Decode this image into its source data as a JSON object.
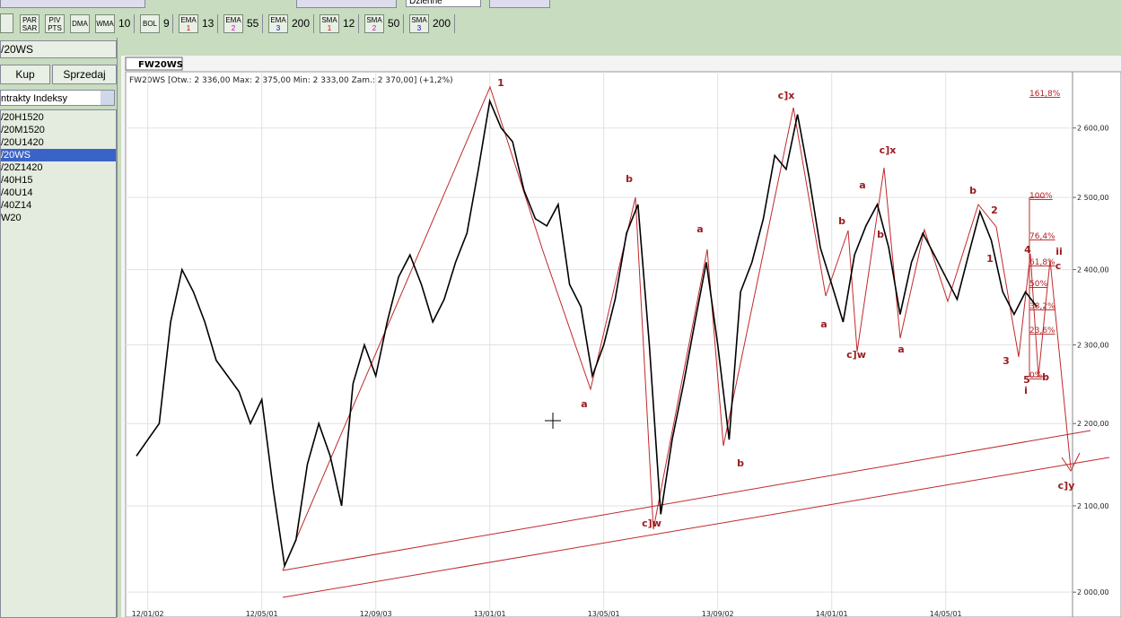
{
  "toolbar": {
    "timeframe": "Dzienne",
    "buttons": [
      {
        "name": "PAR",
        "name2": "SAR"
      },
      {
        "name": "PIV",
        "name2": "PTS"
      },
      {
        "name": "DMA"
      },
      {
        "name": "WMA",
        "param": "10"
      },
      {
        "name": "BOL",
        "param": "9"
      },
      {
        "name": "EMA",
        "sub": "1",
        "param": "13"
      },
      {
        "name": "EMA",
        "sub": "2",
        "param": "55"
      },
      {
        "name": "EMA",
        "sub": "3",
        "param": "200"
      },
      {
        "name": "SMA",
        "sub": "1",
        "param": "12"
      },
      {
        "name": "SMA",
        "sub": "2",
        "param": "50"
      },
      {
        "name": "SMA",
        "sub": "3",
        "param": "200"
      }
    ]
  },
  "sidebar": {
    "title": "/20WS",
    "buy": "Kup",
    "sell": "Sprzedaj",
    "dropdown": "ntrakty Indeksy",
    "items": [
      "/20H1520",
      "/20M1520",
      "/20U1420",
      "/20WS",
      "/20Z1420",
      "/40H15",
      "/40U14",
      "/40Z14",
      "W20"
    ],
    "selected": 3
  },
  "chart_data": {
    "type": "line",
    "tab": "FW20WS",
    "title": "FW20WS [Otw.: 2 336,00   Max: 2 375,00   Min: 2 333,00   Zam.: 2 370,00] (+1,2%)",
    "categories": [
      null,
      "12/01/02",
      null,
      null,
      null,
      null,
      null,
      null,
      null,
      null,
      null,
      "12/05/01",
      null,
      null,
      null,
      null,
      null,
      null,
      null,
      null,
      null,
      "12/09/03",
      null,
      null,
      null,
      null,
      null,
      null,
      null,
      null,
      null,
      "13/01/01",
      null,
      null,
      null,
      null,
      null,
      null,
      null,
      null,
      null,
      "13/05/01",
      null,
      null,
      null,
      null,
      null,
      null,
      null,
      null,
      null,
      "13/09/02",
      null,
      null,
      null,
      null,
      null,
      null,
      null,
      null,
      null,
      "14/01/01",
      null,
      null,
      null,
      null,
      null,
      null,
      null,
      null,
      null,
      "14/05/01",
      null,
      null,
      null,
      null,
      null,
      null,
      null,
      null
    ],
    "values": [
      2160,
      2180,
      2200,
      2330,
      2400,
      2370,
      2330,
      2280,
      2260,
      2240,
      2200,
      2230,
      2120,
      2030,
      2060,
      2150,
      2200,
      2160,
      2100,
      2250,
      2300,
      2260,
      2330,
      2390,
      2420,
      2380,
      2330,
      2360,
      2410,
      2450,
      2540,
      2640,
      2600,
      2580,
      2510,
      2470,
      2460,
      2490,
      2380,
      2350,
      2260,
      2300,
      2360,
      2450,
      2490,
      2300,
      2090,
      2180,
      2250,
      2330,
      2410,
      2300,
      2180,
      2370,
      2410,
      2470,
      2560,
      2540,
      2620,
      2530,
      2430,
      2380,
      2330,
      2420,
      2460,
      2490,
      2430,
      2340,
      2410,
      2450,
      2420,
      2390,
      2360,
      2420,
      2480,
      2440,
      2370,
      2340,
      2370,
      2350
    ],
    "color": "#000000",
    "log_scale": true,
    "grid": true,
    "ylim": [
      1980,
      2684
    ],
    "yticks": [
      {
        "value": 2000,
        "label": "2 000,00"
      },
      {
        "value": 2100,
        "label": "2 100,00"
      },
      {
        "value": 2200,
        "label": "2 200,00"
      },
      {
        "value": 2300,
        "label": "2 300,00"
      },
      {
        "value": 2400,
        "label": "2 400,00"
      },
      {
        "value": 2500,
        "label": "2 500,00"
      },
      {
        "value": 2600,
        "label": "2 600,00"
      }
    ],
    "annotations": [
      "1",
      "a",
      "b",
      "c]w",
      "a",
      "b",
      "c]x",
      "a",
      "b",
      "a",
      "c]w",
      "b",
      "c]x",
      "a",
      "b",
      "2",
      "1",
      "3",
      "4",
      "5",
      "i",
      "b",
      "ii",
      "c",
      "c]y"
    ],
    "fib_levels": [
      "161,8%",
      "100%",
      "76,4%",
      "61,8%",
      "50%",
      "38,2%",
      "23,6%",
      "0%"
    ]
  }
}
